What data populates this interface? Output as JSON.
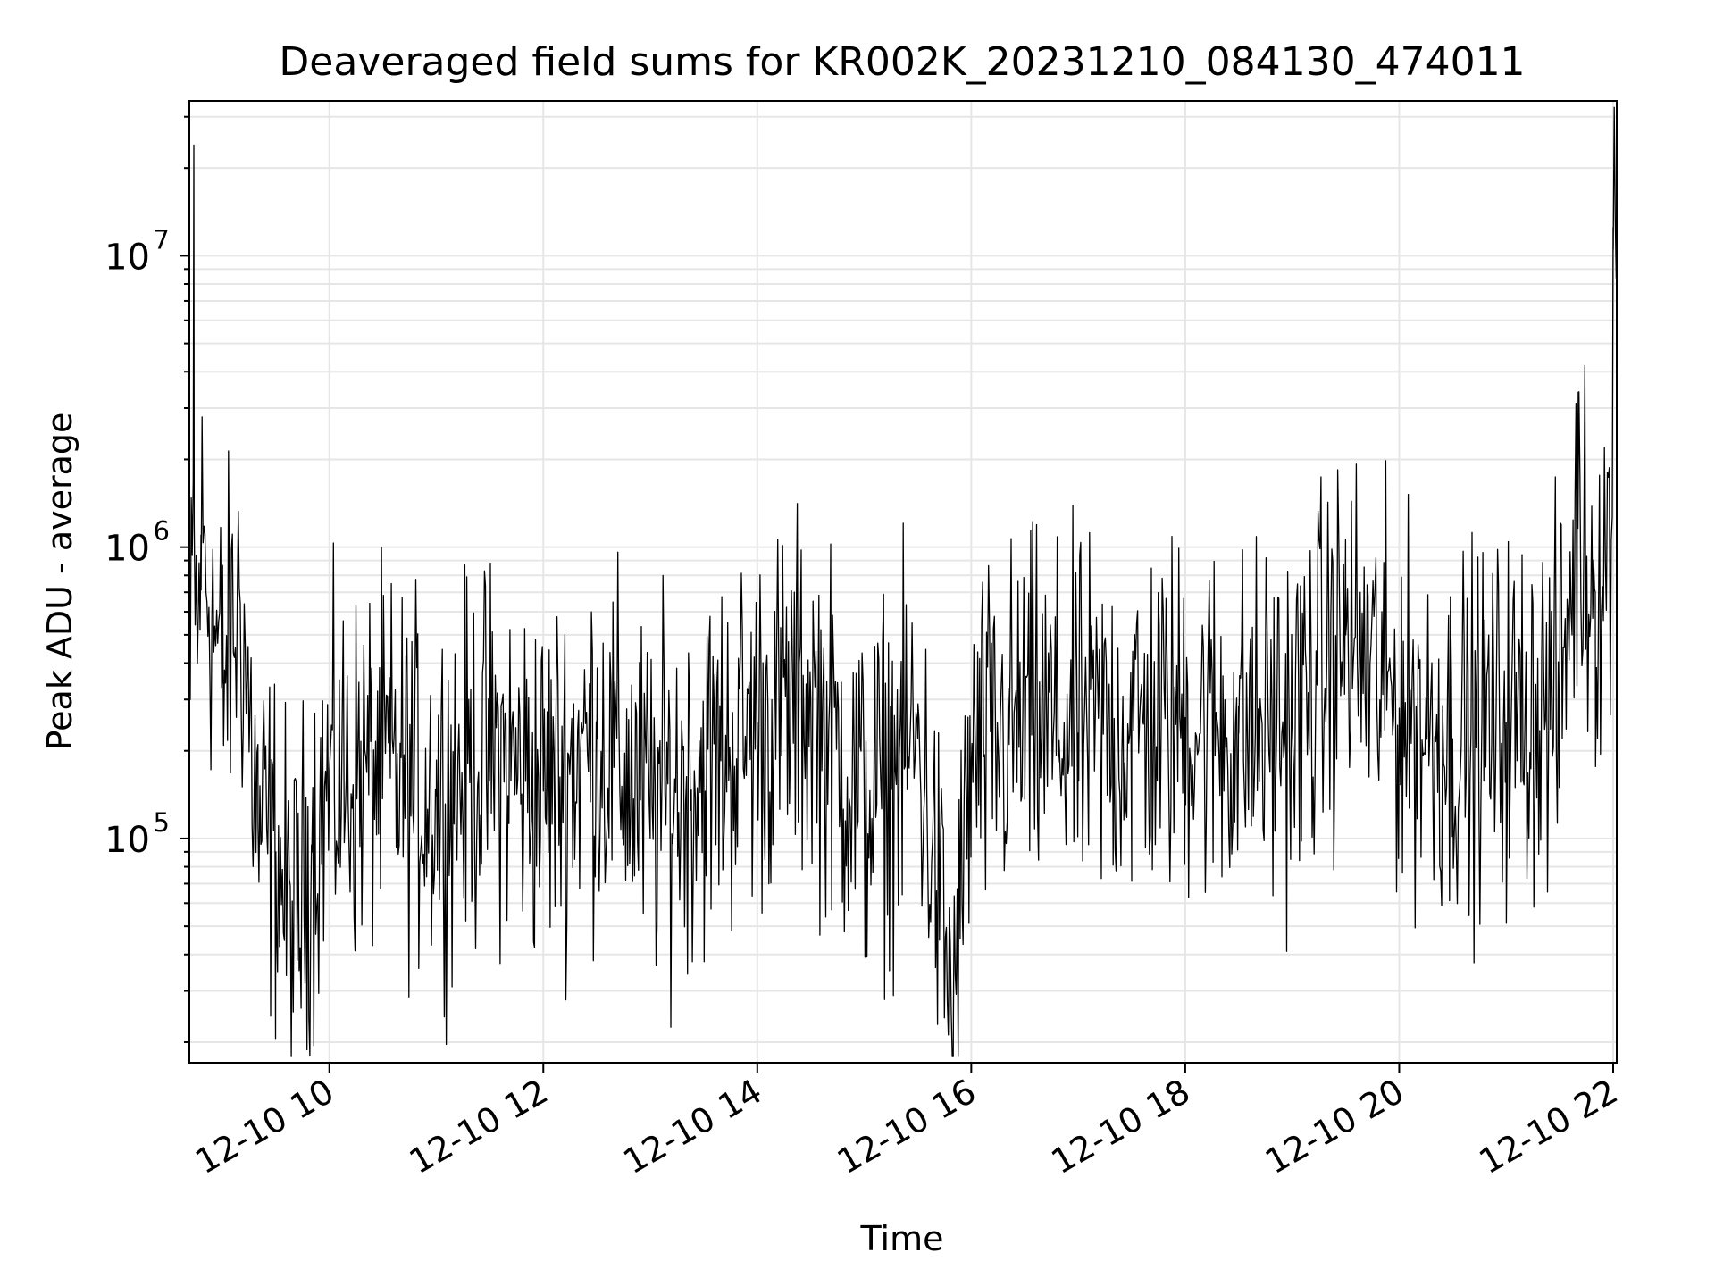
{
  "chart_data": {
    "type": "line",
    "title": "Deaveraged field sums for KR002K_20231210_084130_474011",
    "xlabel": "Time",
    "ylabel": "Peak ADU - average",
    "x_ticks": [
      "12-10 10",
      "12-10 12",
      "12-10 14",
      "12-10 16",
      "12-10 18",
      "12-10 20",
      "12-10 22"
    ],
    "y_ticks": [
      {
        "base": "10",
        "exp": "5"
      },
      {
        "base": "10",
        "exp": "6"
      },
      {
        "base": "10",
        "exp": "7"
      }
    ],
    "xlim": [
      "2023-12-10 08:41:30",
      "2023-12-10 22:02:00"
    ],
    "ylim": [
      17000,
      34000000
    ],
    "yscale": "log",
    "grid": true,
    "line_color": "#000000",
    "grid_color": "#e6e6e6",
    "series": [
      {
        "values": [
          {
            "t": "2023-12-10 08:42",
            "v": 300000
          },
          {
            "t": "2023-12-10 08:44",
            "v": 24000000
          },
          {
            "t": "2023-12-10 08:46",
            "v": 400000
          },
          {
            "t": "2023-12-10 08:48",
            "v": 1100000
          },
          {
            "t": "2023-12-10 09:00",
            "v": 350000
          },
          {
            "t": "2023-12-10 09:10",
            "v": 650000
          },
          {
            "t": "2023-12-10 09:20",
            "v": 110000
          },
          {
            "t": "2023-12-10 09:30",
            "v": 90000
          },
          {
            "t": "2023-12-10 09:40",
            "v": 45000
          },
          {
            "t": "2023-12-10 09:50",
            "v": 95000
          },
          {
            "t": "2023-12-10 10:00",
            "v": 150000
          },
          {
            "t": "2023-12-10 10:30",
            "v": 180000
          },
          {
            "t": "2023-12-10 11:00",
            "v": 140000
          },
          {
            "t": "2023-12-10 11:30",
            "v": 200000
          },
          {
            "t": "2023-12-10 12:00",
            "v": 150000
          },
          {
            "t": "2023-12-10 12:30",
            "v": 220000
          },
          {
            "t": "2023-12-10 13:00",
            "v": 130000
          },
          {
            "t": "2023-12-10 13:30",
            "v": 170000
          },
          {
            "t": "2023-12-10 14:00",
            "v": 250000
          },
          {
            "t": "2023-12-10 14:30",
            "v": 300000
          },
          {
            "t": "2023-12-10 15:00",
            "v": 130000
          },
          {
            "t": "2023-12-10 15:30",
            "v": 220000
          },
          {
            "t": "2023-12-10 15:50",
            "v": 25000
          },
          {
            "t": "2023-12-10 16:00",
            "v": 180000
          },
          {
            "t": "2023-12-10 16:30",
            "v": 250000
          },
          {
            "t": "2023-12-10 17:00",
            "v": 230000
          },
          {
            "t": "2023-12-10 17:30",
            "v": 240000
          },
          {
            "t": "2023-12-10 18:00",
            "v": 260000
          },
          {
            "t": "2023-12-10 18:30",
            "v": 230000
          },
          {
            "t": "2023-12-10 19:00",
            "v": 250000
          },
          {
            "t": "2023-12-10 19:30",
            "v": 500000
          },
          {
            "t": "2023-12-10 20:00",
            "v": 280000
          },
          {
            "t": "2023-12-10 20:30",
            "v": 220000
          },
          {
            "t": "2023-12-10 21:00",
            "v": 250000
          },
          {
            "t": "2023-12-10 21:30",
            "v": 300000
          },
          {
            "t": "2023-12-10 21:40",
            "v": 3400000
          },
          {
            "t": "2023-12-10 21:50",
            "v": 700000
          },
          {
            "t": "2023-12-10 22:00",
            "v": 12500000
          }
        ]
      }
    ]
  }
}
